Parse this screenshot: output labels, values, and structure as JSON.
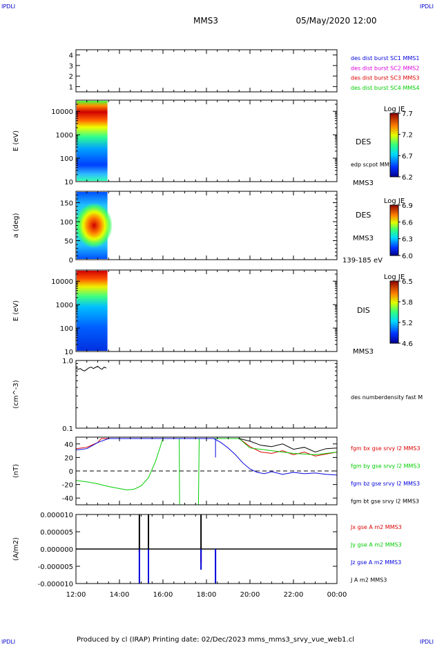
{
  "header": {
    "corner_tl": "IPDLI",
    "corner_tr": "IPDLI",
    "corner_bl": "IPDLI",
    "corner_br": "IPDLI",
    "spacecraft": "MMS3",
    "date": "05/May/2020 12:00",
    "footer": "Produced by cl (IRAP)   Printing date: 02/Dec/2023   mms_mms3_srvy_vue_web1.cl"
  },
  "colors": {
    "blue": "#0000dd",
    "magenta": "#dd00dd",
    "red": "#dd0000",
    "green": "#00cc00",
    "black": "#000000"
  },
  "chart_data": [
    {
      "type": "line",
      "panel": "flags",
      "ylim": [
        0.5,
        4.5
      ],
      "yticks": [
        1,
        2,
        3,
        4
      ],
      "legend": [
        {
          "name": "des dist burst SC1 MMS1",
          "color": "#0000dd"
        },
        {
          "name": "des dist burst SC2 MMS2",
          "color": "#dd00dd"
        },
        {
          "name": "des dist burst SC3 MMS3",
          "color": "#dd0000"
        },
        {
          "name": "des dist burst SC4 MMS4",
          "color": "#00cc00"
        }
      ]
    },
    {
      "type": "heatmap",
      "panel": "des_energy",
      "ylabel": "E (eV)",
      "yscale": "log",
      "ylim": [
        10,
        30000
      ],
      "yticks": [
        "10",
        "100",
        "1000",
        "10000"
      ],
      "x_coverage": [
        "12:00",
        "13:25"
      ],
      "instrument": "DES",
      "extra_label": "edp scpot MMS3",
      "spacecraft": "MMS3",
      "colorbar": {
        "title": "Log JE",
        "ticks": [
          "7.7",
          "7.2",
          "6.7",
          "6.2"
        ],
        "range": [
          6.2,
          7.7
        ]
      }
    },
    {
      "type": "heatmap",
      "panel": "des_pitch",
      "ylabel": "a (deg)",
      "ylim": [
        0,
        180
      ],
      "yticks": [
        "0",
        "50",
        "100",
        "150"
      ],
      "x_coverage": [
        "12:00",
        "13:25"
      ],
      "instrument": "DES",
      "spacecraft": "MMS3",
      "energy_range": "139-185 eV",
      "colorbar": {
        "title": "Log JE",
        "ticks": [
          "6.9",
          "6.6",
          "6.3",
          "6.0"
        ],
        "range": [
          6.0,
          6.9
        ]
      }
    },
    {
      "type": "heatmap",
      "panel": "dis_energy",
      "ylabel": "E (eV)",
      "yscale": "log",
      "ylim": [
        10,
        30000
      ],
      "yticks": [
        "10",
        "100",
        "1000",
        "10000"
      ],
      "x_coverage": [
        "12:00",
        "13:25"
      ],
      "instrument": "DIS",
      "spacecraft": "MMS3",
      "colorbar": {
        "title": "Log JE",
        "ticks": [
          "6.5",
          "5.8",
          "5.2",
          "4.6"
        ],
        "range": [
          4.6,
          6.5
        ]
      }
    },
    {
      "type": "line",
      "panel": "density",
      "ylabel": "(cm^-3)",
      "yscale": "log",
      "ylim": [
        0.1,
        1.0
      ],
      "yticks": [
        "0.1",
        "1.0"
      ],
      "series": [
        {
          "name": "des numberdensity fast M",
          "color": "#000000",
          "x": [
            "12:00",
            "12:06",
            "12:12",
            "12:18",
            "12:24",
            "12:30",
            "12:36",
            "12:42",
            "12:48",
            "12:54",
            "13:00",
            "13:06",
            "13:12",
            "13:18",
            "13:24"
          ],
          "y": [
            0.78,
            0.74,
            0.76,
            0.72,
            0.7,
            0.74,
            0.78,
            0.8,
            0.76,
            0.79,
            0.82,
            0.77,
            0.74,
            0.8,
            0.77
          ]
        }
      ]
    },
    {
      "type": "line",
      "panel": "fgm",
      "ylabel": "(nT)",
      "ylim": [
        -50,
        50
      ],
      "yticks": [
        "-40",
        "-20",
        "0",
        "20",
        "40"
      ],
      "zero_line": true,
      "series": [
        {
          "name": "fgm bx gse srvy l2 MMS3",
          "color": "#dd0000",
          "x": [
            "12:00",
            "12:30",
            "13:00",
            "13:10",
            "19:30",
            "20:00",
            "20:30",
            "21:00",
            "21:30",
            "22:00",
            "22:30",
            "23:00",
            "23:30",
            "00:00"
          ],
          "y": [
            33,
            35,
            42,
            48,
            48,
            36,
            28,
            26,
            30,
            24,
            28,
            22,
            25,
            28
          ]
        },
        {
          "name": "fgm by gse srvy l2 MMS3",
          "color": "#00cc00",
          "x": [
            "12:00",
            "12:30",
            "13:00",
            "13:30",
            "14:00",
            "14:20",
            "14:40",
            "15:00",
            "15:20",
            "15:40",
            "16:00",
            "16:45",
            "16:46",
            "17:38",
            "17:40",
            "19:30",
            "20:00",
            "21:00",
            "22:00",
            "23:00",
            "00:00"
          ],
          "y": [
            -14,
            -16,
            -19,
            -23,
            -26,
            -28,
            -27,
            -22,
            -10,
            15,
            48,
            48,
            -50,
            -50,
            48,
            48,
            34,
            30,
            26,
            24,
            28
          ]
        },
        {
          "name": "fgm bz gse srvy l2 MMS3",
          "color": "#0000dd",
          "x": [
            "12:00",
            "12:30",
            "13:00",
            "13:30",
            "18:20",
            "18:40",
            "19:00",
            "19:20",
            "19:40",
            "20:00",
            "20:20",
            "20:40",
            "21:00",
            "21:30",
            "22:00",
            "22:30",
            "23:00",
            "23:30",
            "00:00"
          ],
          "y": [
            31,
            33,
            42,
            48,
            48,
            42,
            34,
            24,
            12,
            3,
            -2,
            -4,
            -1,
            -5,
            -2,
            -4,
            -3,
            -5,
            -6
          ]
        },
        {
          "name": "fgm bt gse srvy l2 MMS3",
          "color": "#000000",
          "x": [
            "19:30",
            "20:00",
            "20:30",
            "21:00",
            "21:30",
            "22:00",
            "22:30",
            "23:00",
            "23:30",
            "00:00"
          ],
          "y": [
            48,
            44,
            38,
            36,
            40,
            32,
            35,
            28,
            33,
            34
          ]
        }
      ]
    },
    {
      "type": "line",
      "panel": "current",
      "ylabel": "(A/m2)",
      "ylim": [
        -1e-05,
        1e-05
      ],
      "yticks": [
        "-0.000010",
        "-0.000005",
        "0.000000",
        "0.000005",
        "0.000010"
      ],
      "xlabel": "",
      "xticks": [
        "12:00",
        "14:00",
        "16:00",
        "18:00",
        "20:00",
        "22:00",
        "00:00"
      ],
      "series": [
        {
          "name": "Jx gse A m2 MMS3",
          "color": "#dd0000",
          "x": [
            "12:00",
            "14:55",
            "17:45",
            "00:00"
          ],
          "y": [
            0.0,
            -8e-07,
            -4e-06,
            0.0
          ]
        },
        {
          "name": "Jy gse A m2 MMS3",
          "color": "#00cc00",
          "x": [
            "12:00",
            "14:55",
            "17:45",
            "00:00"
          ],
          "y": [
            0.0,
            -5e-07,
            -1e-06,
            0.0
          ]
        },
        {
          "name": "Jz gse A m2 MMS3",
          "color": "#0000dd",
          "x": [
            "12:00",
            "14:55",
            "15:20",
            "17:45",
            "18:25",
            "00:00"
          ],
          "y": [
            0.0,
            -1e-05,
            -1e-05,
            -6e-06,
            -1e-05,
            0.0
          ]
        },
        {
          "name": "J A m2 MMS3",
          "color": "#000000",
          "x": [
            "12:00",
            "14:55",
            "15:20",
            "17:45",
            "00:00"
          ],
          "y": [
            0.0,
            1e-05,
            1e-05,
            1e-05,
            0.0
          ]
        }
      ]
    }
  ]
}
